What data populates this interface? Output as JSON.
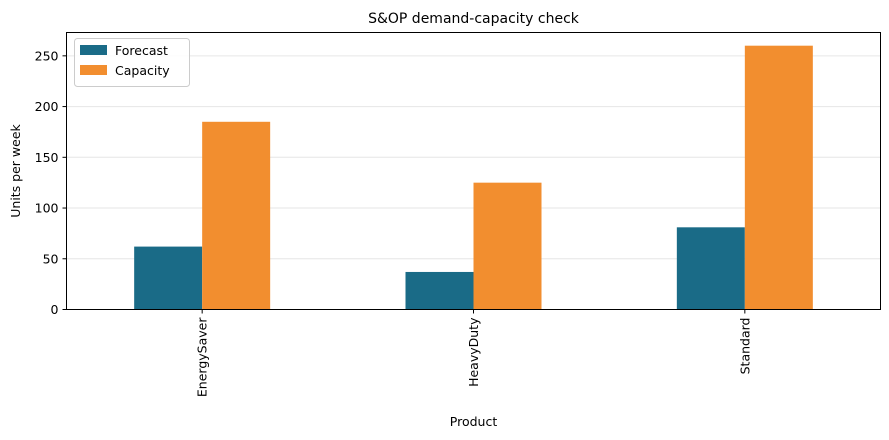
{
  "chart_data": {
    "type": "bar",
    "title": "S&OP demand-capacity check",
    "xlabel": "Product",
    "ylabel": "Units per week",
    "categories": [
      "EnergySaver",
      "HeavyDuty",
      "Standard"
    ],
    "series": [
      {
        "name": "Forecast",
        "values": [
          62,
          37,
          81
        ],
        "color": "#1a6b87"
      },
      {
        "name": "Capacity",
        "values": [
          185,
          125,
          260
        ],
        "color": "#f28e2f"
      }
    ],
    "ylim": [
      0,
      273
    ],
    "yticks": [
      0,
      50,
      100,
      150,
      200,
      250
    ],
    "grid": "y",
    "legend_position": "top-left"
  }
}
